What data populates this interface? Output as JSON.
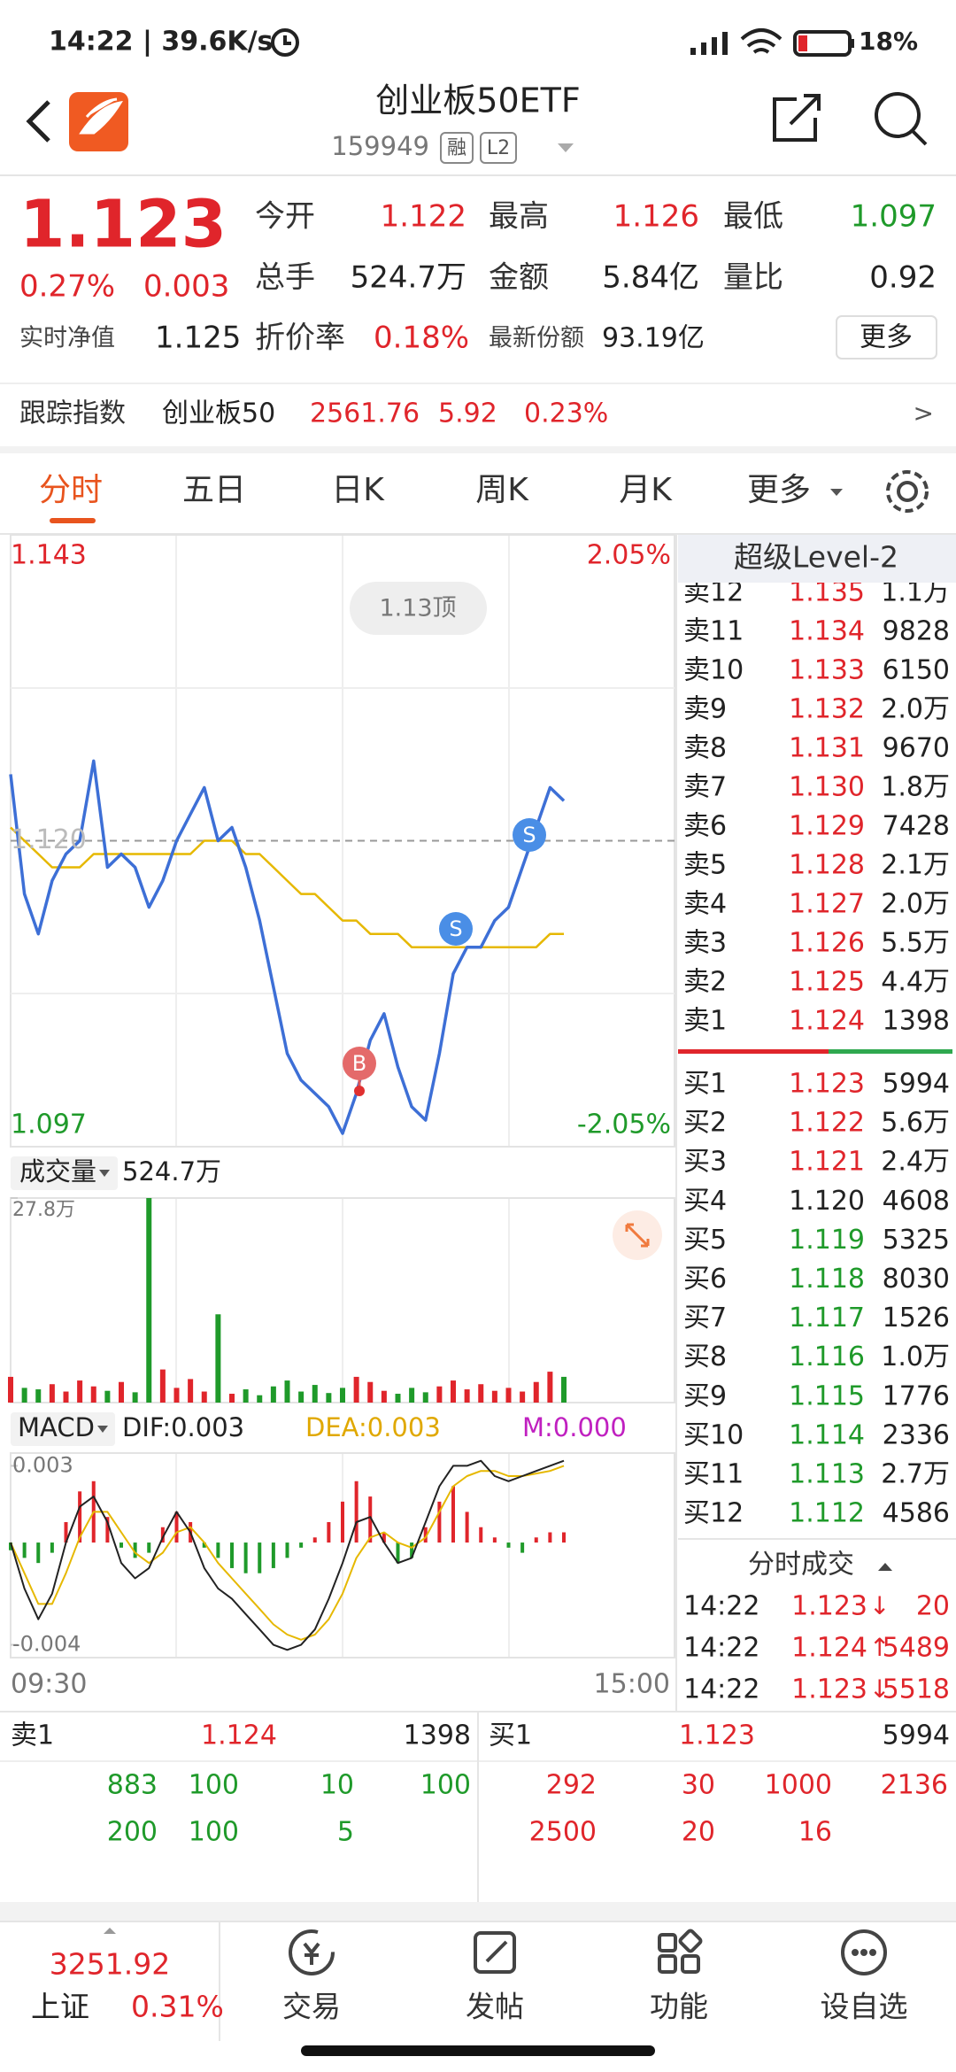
{
  "status_bar": {
    "time_speed": "14:22 | 39.6K/s",
    "battery": "18%"
  },
  "header": {
    "title": "创业板50ETF",
    "code": "159949",
    "tags": [
      "融",
      "L2"
    ]
  },
  "quote": {
    "price": "1.123",
    "change_pct": "0.27%",
    "change": "0.003",
    "fields": [
      {
        "label": "今开",
        "value": "1.122"
      },
      {
        "label": "最高",
        "value": "1.126"
      },
      {
        "label": "最低",
        "value": "1.097"
      },
      {
        "label": "总手",
        "value": "524.7万"
      },
      {
        "label": "金额",
        "value": "5.84亿"
      },
      {
        "label": "量比",
        "value": "0.92"
      }
    ],
    "nav_label": "实时净值",
    "nav": "1.125",
    "discount_label": "折价率",
    "discount": "0.18%",
    "shares_label": "最新份额",
    "shares": "93.19亿",
    "more": "更多"
  },
  "tracking": {
    "label": "跟踪指数",
    "index": "创业板50",
    "points": "2561.76",
    "change": "5.92",
    "change_pct": "0.23%",
    "arrow": ">"
  },
  "tabs": [
    "分时",
    "五日",
    "日K",
    "周K",
    "月K",
    "更多"
  ],
  "chart_data": [
    {
      "type": "line",
      "ylim": [
        1.097,
        1.143
      ],
      "yticks": [
        1.097,
        {
          "value": 1.12,
          "label": "1.120"
        },
        1.143
      ],
      "y2lim": [
        -2.05,
        2.05
      ],
      "y2ticks": [
        {
          "value": -2.05,
          "label": "-2.05%"
        },
        {
          "value": 2.05,
          "label": "2.05%"
        }
      ],
      "x_labels": [
        "09:30",
        "15:00"
      ],
      "badge": "1.13顶",
      "signals": [
        "B",
        "S",
        "S"
      ],
      "series": [
        {
          "color": "#3d6fd6",
          "values": [
            1.125,
            1.116,
            1.113,
            1.117,
            1.119,
            1.12,
            1.126,
            1.118,
            1.119,
            1.118,
            1.115,
            1.117,
            1.12,
            1.122,
            1.124,
            1.12,
            1.121,
            1.118,
            1.114,
            1.109,
            1.104,
            1.102,
            1.101,
            1.1,
            1.098,
            1.101,
            1.105,
            1.107,
            1.103,
            1.1,
            1.099,
            1.104,
            1.11,
            1.112,
            1.112,
            1.114,
            1.115,
            1.118,
            1.121,
            1.124,
            1.123
          ]
        },
        {
          "color": "#e6b800",
          "values": [
            1.121,
            1.12,
            1.119,
            1.118,
            1.118,
            1.118,
            1.119,
            1.119,
            1.119,
            1.119,
            1.119,
            1.119,
            1.119,
            1.119,
            1.12,
            1.12,
            1.12,
            1.119,
            1.119,
            1.118,
            1.117,
            1.116,
            1.116,
            1.115,
            1.114,
            1.114,
            1.113,
            1.113,
            1.113,
            1.112,
            1.112,
            1.112,
            1.112,
            1.112,
            1.112,
            1.112,
            1.112,
            1.112,
            1.112,
            1.113,
            1.113
          ]
        }
      ]
    },
    {
      "type": "bar",
      "label": "成交量",
      "total": "524.7万",
      "ylim": [
        0,
        27.8
      ],
      "yticks": [
        {
          "value": 27.8,
          "label": "27.8万"
        }
      ],
      "up_color": "#e0252b",
      "down_color": "#1f9a2a",
      "values": [
        3.5,
        2.0,
        1.8,
        2.5,
        1.5,
        3.0,
        2.2,
        1.6,
        2.8,
        1.4,
        27.8,
        4.5,
        2.0,
        3.2,
        1.5,
        12.0,
        1.2,
        1.8,
        1.0,
        2.2,
        3.0,
        1.5,
        2.4,
        1.3,
        2.0,
        3.5,
        2.8,
        1.6,
        1.2,
        2.0,
        1.4,
        2.2,
        3.0,
        1.8,
        2.5,
        1.6,
        2.0,
        1.5,
        2.8,
        4.2,
        3.5
      ]
    },
    {
      "type": "macd",
      "label": "MACD",
      "dif_label": "DIF:0.003",
      "dea_label": "DEA:0.003",
      "m_label": "M:0.000",
      "ylim": [
        -0.0045,
        0.0035
      ],
      "yticks": [
        -0.004,
        0.003
      ],
      "up_color": "#e0252b",
      "down_color": "#1f9a2a",
      "histogram": [
        -0.0003,
        -0.0006,
        -0.0008,
        -0.0004,
        0.0008,
        0.002,
        0.0024,
        0.001,
        -0.0002,
        -0.0006,
        -0.0004,
        0.0006,
        0.0012,
        0.0008,
        -0.0002,
        -0.0006,
        -0.001,
        -0.0012,
        -0.0012,
        -0.001,
        -0.0006,
        -0.0002,
        0.0002,
        0.0008,
        0.0016,
        0.0024,
        0.0018,
        0.0004,
        -0.0008,
        -0.0006,
        0.0006,
        0.0016,
        0.0022,
        0.0012,
        0.0006,
        0.0002,
        -0.0002,
        -0.0004,
        0.0002,
        0.0004,
        0.0004
      ],
      "series": [
        {
          "color": "#222222",
          "values": [
            0,
            -0.0018,
            -0.003,
            -0.002,
            0,
            0.0014,
            0.0018,
            0.0008,
            -0.0008,
            -0.0014,
            -0.001,
            0.0002,
            0.0012,
            0.0004,
            -0.001,
            -0.0018,
            -0.0022,
            -0.0028,
            -0.0034,
            -0.004,
            -0.0042,
            -0.004,
            -0.0034,
            -0.0022,
            -0.0008,
            0.0008,
            0.001,
            0,
            -0.0008,
            -0.0006,
            0.0008,
            0.0022,
            0.003,
            0.003,
            0.0032,
            0.0026,
            0.0024,
            0.0026,
            0.0028,
            0.003,
            0.0032
          ]
        },
        {
          "color": "#e6b800",
          "values": [
            0,
            -0.0012,
            -0.0024,
            -0.0024,
            -0.0012,
            0.0002,
            0.0012,
            0.0012,
            0.0004,
            -0.0004,
            -0.0008,
            -0.0004,
            0.0004,
            0.0006,
            0,
            -0.0008,
            -0.0014,
            -0.002,
            -0.0026,
            -0.0032,
            -0.0036,
            -0.0038,
            -0.0036,
            -0.003,
            -0.002,
            -0.0006,
            0.0002,
            0.0004,
            0,
            -0.0002,
            0.0002,
            0.0012,
            0.0022,
            0.0026,
            0.0028,
            0.0028,
            0.0026,
            0.0026,
            0.0027,
            0.0028,
            0.003
          ]
        }
      ]
    }
  ],
  "level2": {
    "title": "超级Level-2",
    "asks": [
      {
        "label": "卖12",
        "price": "1.135",
        "vol": "1.1万"
      },
      {
        "label": "卖11",
        "price": "1.134",
        "vol": "9828"
      },
      {
        "label": "卖10",
        "price": "1.133",
        "vol": "6150"
      },
      {
        "label": "卖9",
        "price": "1.132",
        "vol": "2.0万"
      },
      {
        "label": "卖8",
        "price": "1.131",
        "vol": "9670"
      },
      {
        "label": "卖7",
        "price": "1.130",
        "vol": "1.8万"
      },
      {
        "label": "卖6",
        "price": "1.129",
        "vol": "7428"
      },
      {
        "label": "卖5",
        "price": "1.128",
        "vol": "2.1万"
      },
      {
        "label": "卖4",
        "price": "1.127",
        "vol": "2.0万"
      },
      {
        "label": "卖3",
        "price": "1.126",
        "vol": "5.5万"
      },
      {
        "label": "卖2",
        "price": "1.125",
        "vol": "4.4万"
      },
      {
        "label": "卖1",
        "price": "1.124",
        "vol": "1398"
      }
    ],
    "bids": [
      {
        "label": "买1",
        "price": "1.123",
        "vol": "5994"
      },
      {
        "label": "买2",
        "price": "1.122",
        "vol": "5.6万"
      },
      {
        "label": "买3",
        "price": "1.121",
        "vol": "2.4万"
      },
      {
        "label": "买4",
        "price": "1.120",
        "vol": "4608"
      },
      {
        "label": "买5",
        "price": "1.119",
        "vol": "5325"
      },
      {
        "label": "买6",
        "price": "1.118",
        "vol": "8030"
      },
      {
        "label": "买7",
        "price": "1.117",
        "vol": "1526"
      },
      {
        "label": "买8",
        "price": "1.116",
        "vol": "1.0万"
      },
      {
        "label": "买9",
        "price": "1.115",
        "vol": "1776"
      },
      {
        "label": "买10",
        "price": "1.114",
        "vol": "2336"
      },
      {
        "label": "买11",
        "price": "1.113",
        "vol": "2.7万"
      },
      {
        "label": "买12",
        "price": "1.112",
        "vol": "4586"
      }
    ],
    "trades_title": "分时成交",
    "trades": [
      {
        "time": "14:22",
        "price": "1.123",
        "dir": "↓",
        "vol": "20"
      },
      {
        "time": "14:22",
        "price": "1.124",
        "dir": "↑",
        "vol": "5489"
      },
      {
        "time": "14:22",
        "price": "1.123",
        "dir": "↓",
        "vol": "5518"
      }
    ]
  },
  "queue": {
    "ask": {
      "label": "卖1",
      "price": "1.124",
      "vol": "1398",
      "orders": [
        "883",
        "100",
        "10",
        "100",
        "200",
        "100",
        "5"
      ]
    },
    "bid": {
      "label": "买1",
      "price": "1.123",
      "vol": "5994",
      "orders": [
        "292",
        "30",
        "1000",
        "2136",
        "2500",
        "20",
        "16"
      ]
    }
  },
  "bottom_nav": {
    "index": {
      "value": "3251.92",
      "name": "上证",
      "change": "0.31%"
    },
    "items": [
      "交易",
      "发帖",
      "功能",
      "设自选"
    ]
  }
}
